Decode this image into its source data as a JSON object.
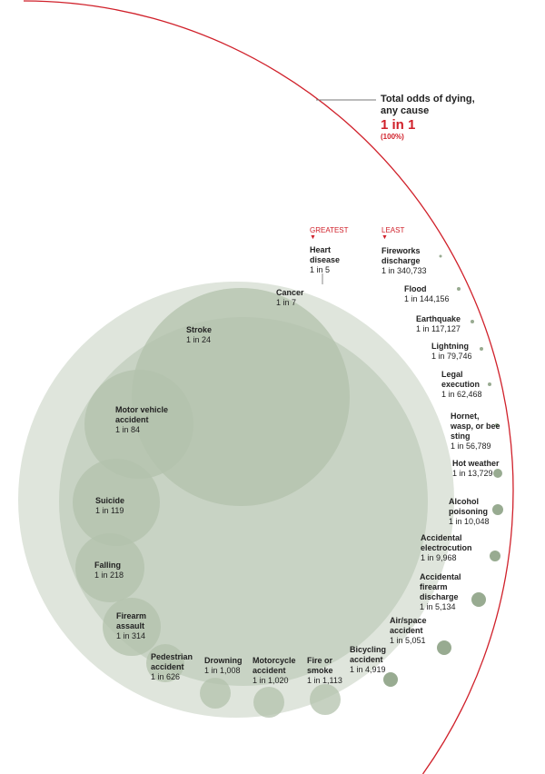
{
  "chart_data": {
    "type": "bubble",
    "total": {
      "title": "Total odds of dying, any cause",
      "value": "1 in 1",
      "percent": "(100%)"
    },
    "headers": {
      "greatest": "GREATEST",
      "least": "LEAST"
    },
    "marker": "▼",
    "colors": {
      "outer": "#dfe5dc",
      "inner": "#c8d3c4",
      "bubble": "#b3c2ac",
      "small": "#98ab91",
      "total_ring": "#d0202a"
    },
    "causes": [
      {
        "name": "Heart disease",
        "odds": "1 in 5",
        "one_in": 5
      },
      {
        "name": "Cancer",
        "odds": "1 in 7",
        "one_in": 7
      },
      {
        "name": "Stroke",
        "odds": "1 in 24",
        "one_in": 24
      },
      {
        "name": "Motor vehicle accident",
        "odds": "1 in 84",
        "one_in": 84
      },
      {
        "name": "Suicide",
        "odds": "1 in 119",
        "one_in": 119
      },
      {
        "name": "Falling",
        "odds": "1 in 218",
        "one_in": 218
      },
      {
        "name": "Firearm assault",
        "odds": "1 in 314",
        "one_in": 314
      },
      {
        "name": "Pedestrian accident",
        "odds": "1 in 626",
        "one_in": 626
      },
      {
        "name": "Drowning",
        "odds": "1 in 1,008",
        "one_in": 1008
      },
      {
        "name": "Motorcycle accident",
        "odds": "1 in 1,020",
        "one_in": 1020
      },
      {
        "name": "Fire or smoke",
        "odds": "1 in 1,113",
        "one_in": 1113
      },
      {
        "name": "Bicycling accident",
        "odds": "1 in 4,919",
        "one_in": 4919
      },
      {
        "name": "Air/space accident",
        "odds": "1 in 5,051",
        "one_in": 5051
      },
      {
        "name": "Accidental firearm discharge",
        "odds": "1 in 5,134",
        "one_in": 5134
      },
      {
        "name": "Accidental electrocution",
        "odds": "1 in 9,968",
        "one_in": 9968
      },
      {
        "name": "Alcohol poisoning",
        "odds": "1 in 10,048",
        "one_in": 10048
      },
      {
        "name": "Hot weather",
        "odds": "1 in 13,729",
        "one_in": 13729
      },
      {
        "name": "Hornet, wasp, or bee sting",
        "odds": "1 in 56,789",
        "one_in": 56789
      },
      {
        "name": "Legal execution",
        "odds": "1 in 62,468",
        "one_in": 62468
      },
      {
        "name": "Lightning",
        "odds": "1 in 79,746",
        "one_in": 79746
      },
      {
        "name": "Earthquake",
        "odds": "1 in 117,127",
        "one_in": 117127
      },
      {
        "name": "Flood",
        "odds": "1 in 144,156",
        "one_in": 144156
      },
      {
        "name": "Fireworks discharge",
        "odds": "1 in 340,733",
        "one_in": 340733
      }
    ]
  }
}
